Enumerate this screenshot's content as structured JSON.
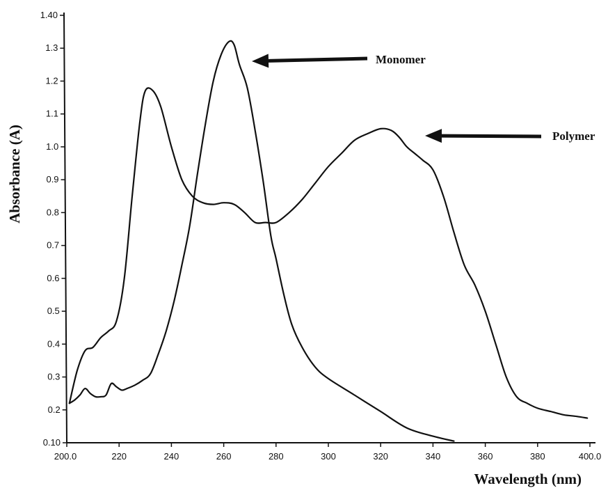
{
  "chart_data": {
    "type": "line",
    "xlabel": "Wavelength (nm)",
    "ylabel": "Absorbance  (A)",
    "xlim": [
      200,
      400
    ],
    "ylim": [
      0.1,
      1.4
    ],
    "x_ticks": [
      200,
      220,
      240,
      260,
      280,
      300,
      320,
      340,
      360,
      380,
      400
    ],
    "x_tick_labels": [
      "200.0",
      "220",
      "240",
      "260",
      "280",
      "300",
      "320",
      "340",
      "360",
      "380",
      "400.0"
    ],
    "y_ticks": [
      0.1,
      0.2,
      0.3,
      0.4,
      0.5,
      0.6,
      0.7,
      0.8,
      0.9,
      1.0,
      1.1,
      1.2,
      1.3,
      1.4
    ],
    "y_tick_labels": [
      "0.10",
      "0.2",
      "0.3",
      "0.4",
      "0.5",
      "0.6",
      "0.7",
      "0.8",
      "0.9",
      "1.0",
      "1.1",
      "1.2",
      "1.3",
      "1.40"
    ],
    "grid": false,
    "series": [
      {
        "name": "Monomer",
        "x": [
          201,
          203,
          205,
          207,
          209,
          211,
          213,
          215,
          217,
          219,
          221,
          223,
          226,
          229,
          232,
          235,
          238,
          241,
          244,
          247,
          250,
          253,
          256,
          259,
          262,
          264,
          266,
          269,
          272,
          275,
          278,
          280,
          283,
          286,
          290,
          295,
          300,
          310,
          320,
          330,
          340,
          348
        ],
        "y": [
          0.22,
          0.23,
          0.245,
          0.265,
          0.25,
          0.24,
          0.24,
          0.245,
          0.28,
          0.27,
          0.26,
          0.265,
          0.275,
          0.29,
          0.31,
          0.37,
          0.44,
          0.53,
          0.64,
          0.76,
          0.92,
          1.07,
          1.2,
          1.28,
          1.32,
          1.31,
          1.25,
          1.18,
          1.05,
          0.9,
          0.73,
          0.66,
          0.55,
          0.46,
          0.39,
          0.33,
          0.295,
          0.245,
          0.195,
          0.145,
          0.12,
          0.105
        ]
      },
      {
        "name": "Polymer",
        "x": [
          201,
          204,
          207,
          210,
          213,
          216,
          219,
          222,
          225,
          228,
          230,
          233,
          236,
          240,
          244,
          248,
          252,
          256,
          260,
          264,
          268,
          272,
          276,
          280,
          285,
          290,
          295,
          300,
          305,
          310,
          315,
          320,
          324,
          327,
          330,
          333,
          336,
          340,
          344,
          348,
          352,
          356,
          360,
          364,
          368,
          372,
          376,
          380,
          385,
          390,
          395,
          399
        ],
        "y": [
          0.22,
          0.32,
          0.38,
          0.39,
          0.42,
          0.44,
          0.47,
          0.6,
          0.85,
          1.08,
          1.17,
          1.17,
          1.12,
          1.0,
          0.9,
          0.85,
          0.83,
          0.825,
          0.83,
          0.825,
          0.8,
          0.77,
          0.77,
          0.77,
          0.8,
          0.84,
          0.89,
          0.94,
          0.98,
          1.02,
          1.04,
          1.055,
          1.05,
          1.03,
          1.0,
          0.98,
          0.96,
          0.93,
          0.85,
          0.74,
          0.64,
          0.58,
          0.5,
          0.4,
          0.3,
          0.24,
          0.22,
          0.205,
          0.195,
          0.185,
          0.18,
          0.175
        ]
      }
    ],
    "annotations": [
      {
        "text": "Monomer",
        "target_x": 267,
        "target_y": 1.32
      },
      {
        "text": "Polymer",
        "target_x": 330,
        "target_y": 1.04
      }
    ]
  }
}
